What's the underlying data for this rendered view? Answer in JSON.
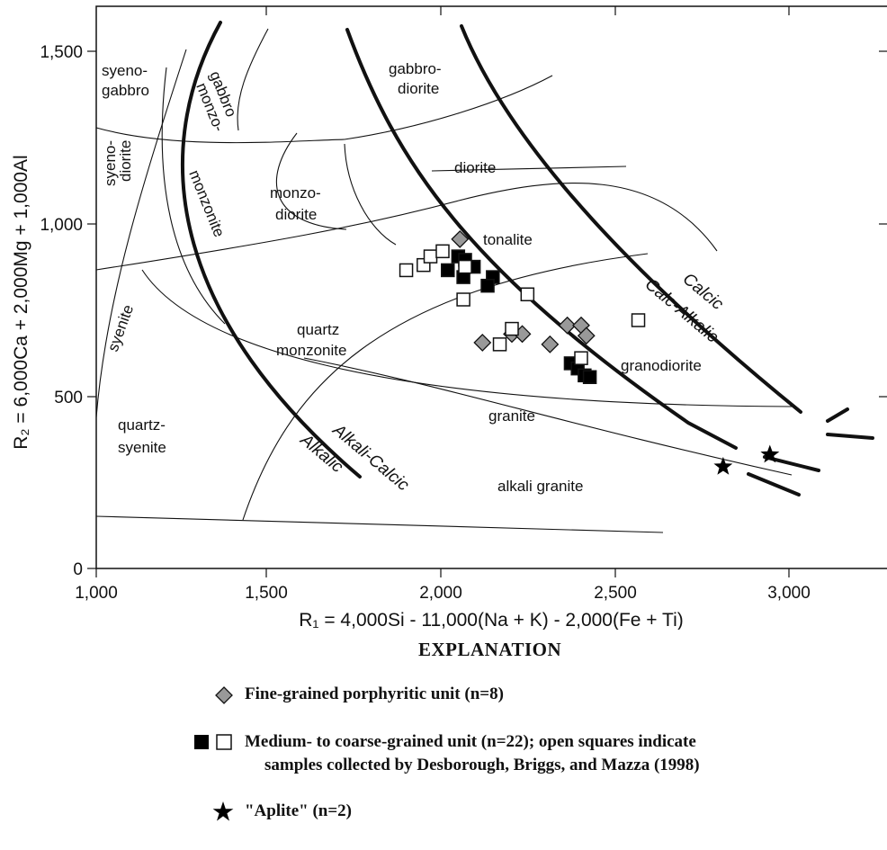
{
  "chart_data": {
    "type": "scatter",
    "xlabel": "R₁ = 4,000Si - 11,000(Na + K) - 2,000(Fe + Ti)",
    "ylabel": "R₂ = 6,000Ca + 2,000Mg + 1,000Al",
    "xlim": [
      1000,
      3300
    ],
    "ylim": [
      0,
      1650
    ],
    "x_ticks": [
      "1,000",
      "1,500",
      "2,000",
      "2,500",
      "3,000"
    ],
    "y_ticks": [
      "0",
      "500",
      "1,000",
      "1,500"
    ],
    "fields": [
      "syeno-gabbro",
      "monzo-gabbro",
      "gabbro-diorite",
      "syeno-diorite",
      "monzonite",
      "monzo-diorite",
      "diorite",
      "tonalite",
      "syenite",
      "quartz monzonite",
      "granodiorite",
      "quartz-syenite",
      "granite",
      "alkali granite"
    ],
    "trend_labels": [
      "Calcic",
      "Calc-Alkalic",
      "Alkali-Calcic",
      "Alkalic"
    ],
    "series": [
      {
        "name": "Fine-grained porphyritic unit (n=8)",
        "marker": "diamond",
        "color": "#999999",
        "points": [
          [
            2050,
            955
          ],
          [
            2115,
            655
          ],
          [
            2200,
            680
          ],
          [
            2230,
            680
          ],
          [
            2310,
            650
          ],
          [
            2360,
            705
          ],
          [
            2400,
            705
          ],
          [
            2415,
            675
          ]
        ]
      },
      {
        "name": "Medium- to coarse-grained unit — filled squares",
        "marker": "square-filled",
        "color": "#000000",
        "points": [
          [
            2045,
            905
          ],
          [
            2065,
            895
          ],
          [
            2090,
            875
          ],
          [
            2015,
            865
          ],
          [
            2060,
            845
          ],
          [
            2145,
            845
          ],
          [
            2130,
            820
          ],
          [
            2370,
            595
          ],
          [
            2390,
            580
          ],
          [
            2410,
            560
          ],
          [
            2425,
            555
          ]
        ]
      },
      {
        "name": "Medium- to coarse-grained unit — open squares (Desborough, Briggs, and Mazza, 1998)",
        "marker": "square-open",
        "color": "#ffffff",
        "points": [
          [
            1895,
            865
          ],
          [
            1945,
            880
          ],
          [
            1965,
            905
          ],
          [
            2000,
            920
          ],
          [
            2065,
            875
          ],
          [
            2060,
            780
          ],
          [
            2245,
            795
          ],
          [
            2200,
            695
          ],
          [
            2165,
            650
          ],
          [
            2400,
            610
          ],
          [
            2565,
            720
          ]
        ]
      },
      {
        "name": "\"Aplite\" (n=2)",
        "marker": "star",
        "color": "#000000",
        "points": [
          [
            2810,
            295
          ],
          [
            2945,
            330
          ]
        ]
      }
    ]
  },
  "legend": {
    "title": "EXPLANATION",
    "fine_grained": "Fine-grained porphyritic unit (n=8)",
    "medium_line1": "Medium- to coarse-grained unit (n=22); open squares indicate",
    "medium_line2": "samples collected by Desborough, Briggs, and Mazza (1998)",
    "aplite": "\"Aplite\" (n=2)"
  },
  "colors": {
    "diamond_fill": "#999999",
    "filled_square": "#000000",
    "star": "#000000"
  }
}
